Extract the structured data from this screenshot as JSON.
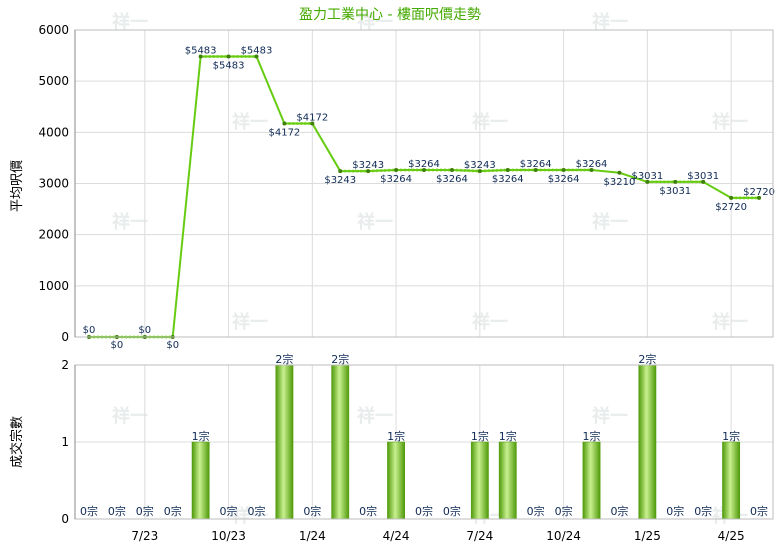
{
  "chart_data": [
    {
      "type": "line",
      "title": "盈力工業中心 - 樓面呎價走勢",
      "ylabel": "平均呎價",
      "ylim": [
        0,
        6000
      ],
      "yticks": [
        "0",
        "1000",
        "2000",
        "3000",
        "4000",
        "5000",
        "6000"
      ],
      "grid": true,
      "series": [
        {
          "values": [
            0,
            0,
            0,
            0,
            5483,
            5483,
            5483,
            4172,
            4172,
            3243,
            3243,
            3264,
            3264,
            3264,
            3243,
            3264,
            3264,
            3264,
            3264,
            3210,
            3031,
            3031,
            3031,
            2720,
            2720
          ],
          "labels": [
            "$0",
            "$0",
            "$0",
            "$0",
            "$5483",
            "$5483",
            "$5483",
            "$4172",
            "$4172",
            "$3243",
            "$3243",
            "$3264",
            "$3264",
            "$3264",
            "$3243",
            "$3264",
            "$3264",
            "$3264",
            "$3264",
            "$3210",
            "$3031",
            "$3031",
            "$3031",
            "$2720",
            "$2720"
          ],
          "color": "#66cc11"
        }
      ]
    },
    {
      "type": "bar",
      "ylabel": "成交宗數",
      "ylim": [
        0,
        2
      ],
      "yticks": [
        "0",
        "1",
        "2"
      ],
      "categories_labels": [
        "7/23",
        "10/23",
        "1/24",
        "4/24",
        "7/24",
        "10/24",
        "1/25",
        "4/25"
      ],
      "values": [
        0,
        0,
        0,
        0,
        1,
        0,
        0,
        2,
        0,
        2,
        0,
        1,
        0,
        0,
        1,
        1,
        0,
        0,
        1,
        0,
        2,
        0,
        0,
        1,
        0
      ],
      "labels": [
        "0宗",
        "0宗",
        "0宗",
        "0宗",
        "1宗",
        "0宗",
        "0宗",
        "2宗",
        "0宗",
        "2宗",
        "0宗",
        "1宗",
        "0宗",
        "0宗",
        "1宗",
        "1宗",
        "0宗",
        "0宗",
        "1宗",
        "0宗",
        "2宗",
        "0宗",
        "0宗",
        "1宗",
        "0宗"
      ],
      "color": "#66bb11"
    }
  ],
  "watermark": "祥一"
}
